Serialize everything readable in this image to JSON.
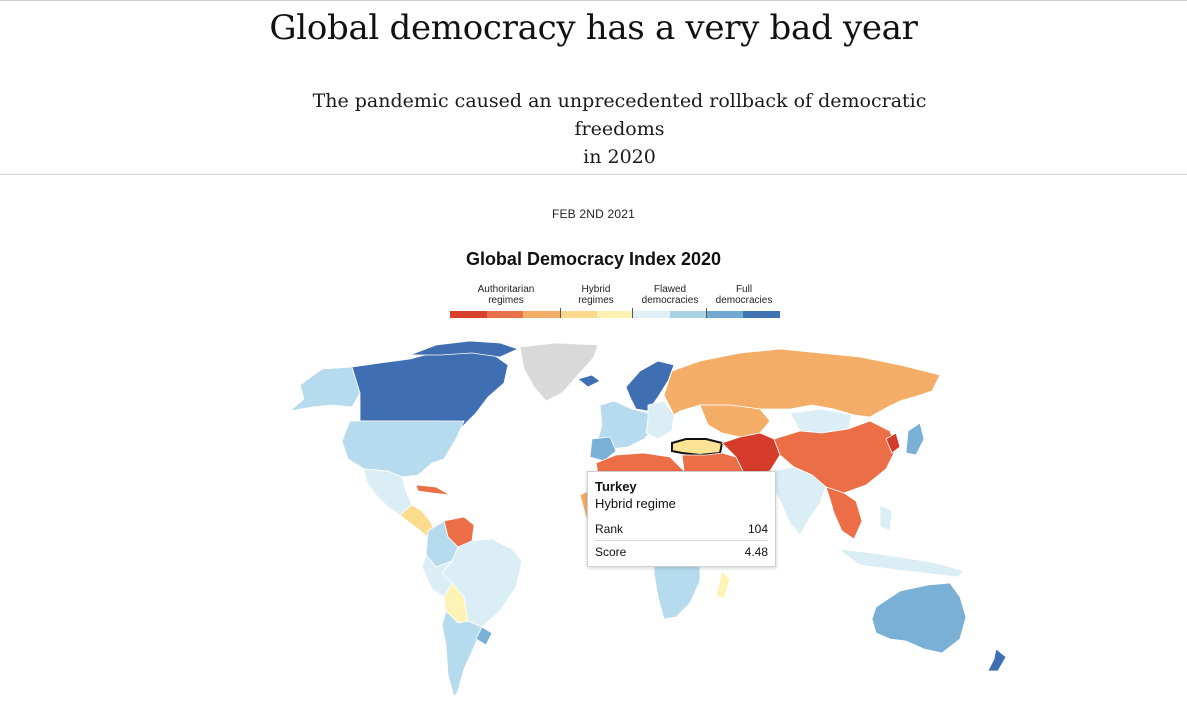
{
  "page": {
    "headline": "Global democracy has a very bad year",
    "subhead_line1": "The pandemic caused an unprecedented rollback of democratic freedoms",
    "subhead_line2": "in 2020",
    "dateline": "FEB 2ND 2021"
  },
  "map": {
    "title": "Global Democracy Index 2020",
    "legend": {
      "categories": [
        {
          "line1": "Authoritarian",
          "line2": "regimes"
        },
        {
          "line1": "Hybrid",
          "line2": "regimes"
        },
        {
          "line1": "Flawed",
          "line2": "democracies"
        },
        {
          "line1": "Full",
          "line2": "democracies"
        }
      ],
      "colors": [
        "#d7402b",
        "#e8704a",
        "#f4ad66",
        "#fbd98c",
        "#fdf1b2",
        "#e1eff6",
        "#a9d2e7",
        "#73a9d1",
        "#3f73b3"
      ]
    },
    "regime_colors": {
      "full": "#3f6fb2",
      "flawed_high": "#7aafd6",
      "flawed": "#b6dbee",
      "flawed_low": "#dbeef6",
      "hybrid_high": "#fdf3b6",
      "hybrid": "#fbdc8f",
      "auth_high": "#f4ad66",
      "auth": "#ec6e46",
      "auth_low": "#d53b2a",
      "no_data": "#d9d9d9",
      "highlight": "#fbe394"
    },
    "tooltip": {
      "country": "Turkey",
      "regime": "Hybrid regime",
      "rank_label": "Rank",
      "rank_value": "104",
      "score_label": "Score",
      "score_value": "4.48"
    }
  }
}
